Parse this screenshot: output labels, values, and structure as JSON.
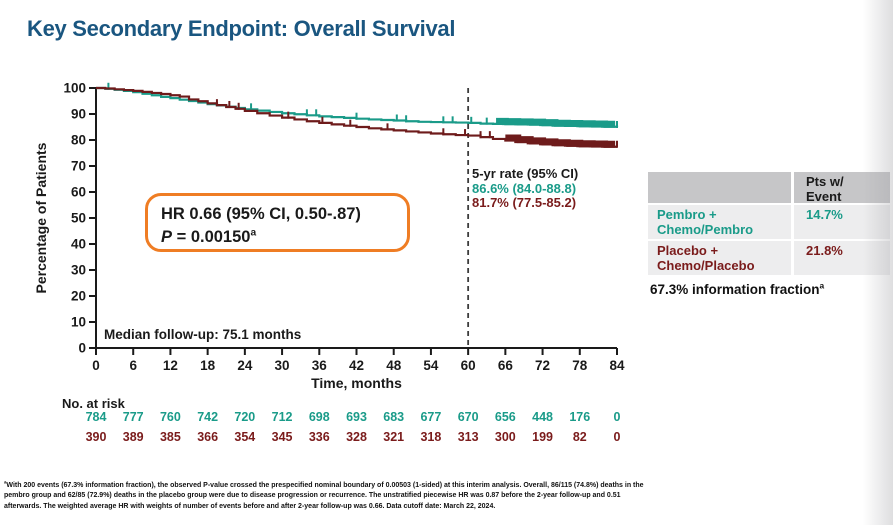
{
  "title": "Key Secondary Endpoint: Overall Survival",
  "colors": {
    "title_blue": "#1A5680",
    "pembro_teal": "#1A9B89",
    "placebo_maroon": "#6E1B1B",
    "hr_box_orange": "#EF7D24",
    "table_header_gray": "#C6C6C8",
    "table_row_gray": "#EDEDEE"
  },
  "hr_box": {
    "line1": "HR 0.66 (95% CI, 0.50-.87)",
    "p_italic": "P",
    "p_rest": " = 0.00150",
    "sup": "a"
  },
  "five_yr": {
    "title": "5-yr rate (95% CI)",
    "pembro": "86.6% (84.0-88.8)",
    "placebo": "81.7% (77.5-85.2)"
  },
  "median_followup": "Median follow-up: 75.1 months",
  "side_table": {
    "header_line1": "Pts w/",
    "header_line2": "Event",
    "rows": [
      {
        "name_line1": "Pembro +",
        "name_line2": "Chemo/Pembro",
        "value": "14.7%",
        "color": "#1A9B89"
      },
      {
        "name_line1": "Placebo +",
        "name_line2": "Chemo/Placebo",
        "value": "21.8%",
        "color": "#7A1B1B"
      }
    ],
    "note_text": "67.3% information fraction",
    "note_sup": "a"
  },
  "footnote": {
    "sup": "a",
    "text": "With 200 events (67.3% information fraction), the observed P-value crossed the prespecified nominal boundary of 0.00503 (1-sided) at this interim analysis. Overall, 86/115 (74.8%) deaths in the pembro group and 62/85 (72.9%) deaths in the placebo group were due to disease progression or recurrence. The unstratified piecewise HR was 0.87 before the 2-year follow-up and 0.51 afterwards. The weighted average HR with weights of number of events before and after 2-year follow-up was 0.66. Data cutoff date: March 22, 2024."
  },
  "chart_data": {
    "type": "line",
    "subtype": "kaplan-meier-step",
    "title": "",
    "xlabel": "Time, months",
    "ylabel": "Percentage of Patients",
    "xlim": [
      0,
      84
    ],
    "ylim": [
      0,
      100
    ],
    "xticks": [
      0,
      6,
      12,
      18,
      24,
      30,
      36,
      42,
      48,
      54,
      60,
      66,
      72,
      78,
      84
    ],
    "yticks": [
      0,
      10,
      20,
      30,
      40,
      50,
      60,
      70,
      80,
      90,
      100
    ],
    "grid": false,
    "dashed_line_x": 60,
    "series": [
      {
        "name": "Pembro + Chemo/Pembro",
        "color": "#1A9B89",
        "five_yr_rate_pct": 86.6,
        "points": [
          [
            0,
            100
          ],
          [
            1.5,
            99.7
          ],
          [
            3,
            99.3
          ],
          [
            4.5,
            98.9
          ],
          [
            6,
            98.4
          ],
          [
            7.5,
            97.8
          ],
          [
            9,
            97.2
          ],
          [
            10.5,
            96.6
          ],
          [
            12,
            96.1
          ],
          [
            13.5,
            95.5
          ],
          [
            15,
            95.0
          ],
          [
            16.5,
            94.4
          ],
          [
            18,
            93.8
          ],
          [
            19.5,
            93.3
          ],
          [
            21,
            92.8
          ],
          [
            22.5,
            92.3
          ],
          [
            24,
            91.8
          ],
          [
            26,
            91.3
          ],
          [
            28,
            90.8
          ],
          [
            30,
            90.3
          ],
          [
            32,
            89.9
          ],
          [
            34,
            89.5
          ],
          [
            36,
            89.1
          ],
          [
            38,
            88.8
          ],
          [
            40,
            88.5
          ],
          [
            42,
            88.2
          ],
          [
            44,
            87.9
          ],
          [
            46,
            87.7
          ],
          [
            48,
            87.5
          ],
          [
            50,
            87.2
          ],
          [
            52,
            87.0
          ],
          [
            54,
            86.9
          ],
          [
            56,
            86.8
          ],
          [
            58,
            86.7
          ],
          [
            60,
            86.6
          ],
          [
            62,
            86.3
          ],
          [
            64,
            86.2
          ],
          [
            66,
            86.1
          ],
          [
            68,
            86.0
          ],
          [
            70,
            85.9
          ],
          [
            72,
            85.7
          ],
          [
            74,
            85.5
          ],
          [
            76,
            85.4
          ],
          [
            78,
            85.3
          ],
          [
            80,
            85.2
          ],
          [
            82,
            85.1
          ],
          [
            84,
            85.0
          ]
        ],
        "censor_ticks": [
          2,
          25,
          34,
          35.5,
          42,
          48.5,
          50,
          56,
          57.5,
          60.5,
          63,
          84
        ],
        "censor_band": [
          64.5,
          83.7
        ]
      },
      {
        "name": "Placebo + Chemo/Placebo",
        "color": "#6E1B1B",
        "five_yr_rate_pct": 81.7,
        "points": [
          [
            0,
            100
          ],
          [
            1.5,
            99.8
          ],
          [
            3,
            99.5
          ],
          [
            4.5,
            99.2
          ],
          [
            6,
            98.9
          ],
          [
            7.5,
            98.5
          ],
          [
            9,
            98.1
          ],
          [
            10.5,
            97.7
          ],
          [
            12,
            97.2
          ],
          [
            13.5,
            96.7
          ],
          [
            15,
            95.6
          ],
          [
            16.5,
            94.9
          ],
          [
            18,
            94.1
          ],
          [
            19.5,
            93.4
          ],
          [
            21,
            92.7
          ],
          [
            22.5,
            92.0
          ],
          [
            24,
            91.2
          ],
          [
            26,
            90.3
          ],
          [
            28,
            89.4
          ],
          [
            30,
            88.6
          ],
          [
            32,
            87.9
          ],
          [
            34,
            87.2
          ],
          [
            36,
            86.6
          ],
          [
            38,
            86.0
          ],
          [
            40,
            85.5
          ],
          [
            42,
            85.0
          ],
          [
            44,
            84.5
          ],
          [
            46,
            84.1
          ],
          [
            48,
            83.7
          ],
          [
            50,
            83.3
          ],
          [
            52,
            82.9
          ],
          [
            54,
            82.5
          ],
          [
            56,
            82.2
          ],
          [
            58,
            81.9
          ],
          [
            60,
            81.7
          ],
          [
            62,
            81.1
          ],
          [
            64,
            80.4
          ],
          [
            66,
            79.8
          ],
          [
            68,
            79.2
          ],
          [
            70,
            78.7
          ],
          [
            72,
            78.3
          ],
          [
            74,
            78.0
          ],
          [
            76,
            77.8
          ],
          [
            78,
            77.6
          ],
          [
            80,
            77.5
          ],
          [
            82,
            77.4
          ],
          [
            84,
            77.4
          ]
        ],
        "censor_ticks": [
          19.5,
          21.5,
          23,
          31,
          36.5,
          41,
          47,
          56,
          59.5,
          62,
          63.5,
          84
        ],
        "censor_band": [
          66,
          83.7
        ]
      }
    ],
    "risk_table": {
      "label": "No. at risk",
      "timepoints": [
        0,
        6,
        12,
        18,
        24,
        30,
        36,
        42,
        48,
        54,
        60,
        66,
        72,
        78,
        84
      ],
      "rows": [
        {
          "name": "Pembro + Chemo/Pembro",
          "color": "#1A9B89",
          "values": [
            784,
            777,
            760,
            742,
            720,
            712,
            698,
            693,
            683,
            677,
            670,
            656,
            448,
            176,
            0
          ]
        },
        {
          "name": "Placebo + Chemo/Placebo",
          "color": "#7A1B1B",
          "values": [
            390,
            389,
            385,
            366,
            354,
            345,
            336,
            328,
            321,
            318,
            313,
            300,
            199,
            82,
            0
          ]
        }
      ]
    }
  }
}
